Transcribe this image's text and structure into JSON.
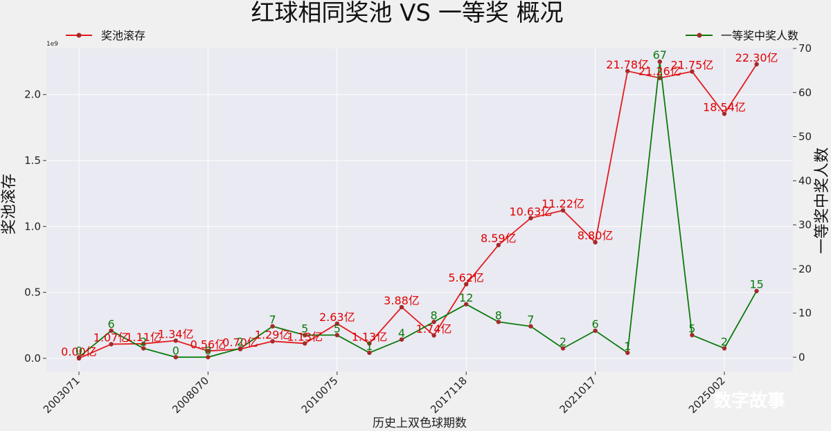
{
  "chart_data": {
    "type": "line",
    "title": "红球相同奖池 VS 一等奖 概况",
    "xlabel": "历史上双色球期数",
    "ylabel_left": "奖池滚存",
    "ylabel_right": "一等奖中奖人数",
    "y_offset_text": "1e9",
    "xticks": [
      "2003071",
      "2008070",
      "2010075",
      "2017118",
      "2021017",
      "2025002"
    ],
    "ylim_left": [
      -0.1,
      2.35
    ],
    "yticks_left": [
      "0.0",
      "0.5",
      "1.0",
      "1.5",
      "2.0"
    ],
    "ylim_right": [
      -3.25,
      70
    ],
    "yticks_right": [
      "0",
      "10",
      "20",
      "30",
      "40",
      "50",
      "60",
      "70"
    ],
    "grid": true,
    "legend": {
      "pool": "奖池滚存",
      "winners": "一等奖中奖人数"
    },
    "series": [
      {
        "name": "奖池滚存",
        "axis": "left",
        "color": "#e31a1c",
        "values": [
          0.0,
          0.107,
          0.111,
          0.134,
          0.056,
          0.07,
          0.129,
          0.113,
          0.263,
          0.113,
          0.388,
          0.174,
          0.562,
          0.859,
          1.063,
          1.122,
          0.88,
          2.178,
          2.126,
          2.175,
          1.854,
          2.23
        ],
        "labels": [
          "0.00亿",
          "1.07亿",
          "1.11亿",
          "1.34亿",
          "0.56亿",
          "0.70亿",
          "1.29亿",
          "1.13亿",
          "2.63亿",
          "1.13亿",
          "3.88亿",
          "1.74亿",
          "5.62亿",
          "8.59亿",
          "10.63亿",
          "11.22亿",
          "8.80亿",
          "21.78亿",
          "21.26亿",
          "21.75亿",
          "18.54亿",
          "22.30亿"
        ]
      },
      {
        "name": "一等奖中奖人数",
        "axis": "right",
        "color": "#0a7a0a",
        "values": [
          0,
          6,
          2,
          0,
          0,
          2,
          7,
          5,
          5,
          1,
          4,
          8,
          12,
          8,
          7,
          2,
          6,
          1,
          67,
          5,
          2,
          15
        ],
        "labels": [
          "0",
          "6",
          "2",
          "0",
          "0",
          "2",
          "7",
          "5",
          "5",
          "1",
          "4",
          "8",
          "12",
          "8",
          "7",
          "2",
          "6",
          "1",
          "67",
          "5",
          "2",
          "15"
        ]
      }
    ]
  },
  "watermark": "数字故事"
}
